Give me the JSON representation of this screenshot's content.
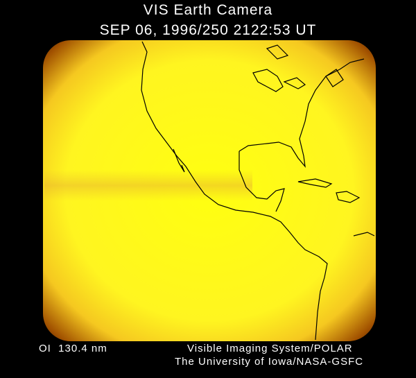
{
  "title": "VIS Earth Camera",
  "timestamp": "SEP 06, 1996/250 2122:53 UT",
  "filter": "OI  130.4 nm",
  "instrument": "Visible Imaging System/POLAR",
  "institution": "The University of Iowa/NASA-GSFC"
}
